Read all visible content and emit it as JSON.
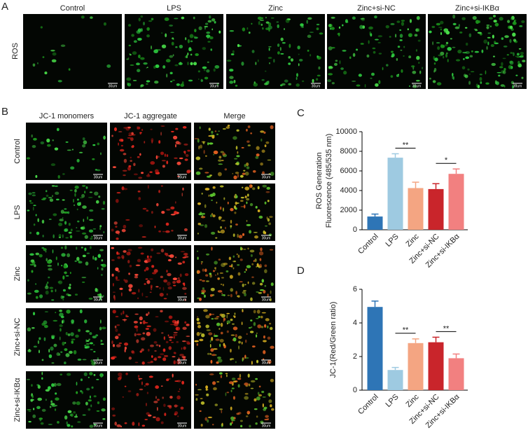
{
  "panels": {
    "A": {
      "letter": "A",
      "columns": [
        "Control",
        "LPS",
        "Zinc",
        "Zinc+si-NC",
        "Zinc+si-IKBα"
      ],
      "row_label": "ROS",
      "scale_bar": "30um"
    },
    "B": {
      "letter": "B",
      "columns": [
        "JC-1 monomers",
        "JC-1 aggregate",
        "Merge"
      ],
      "rows": [
        "Control",
        "LPS",
        "Zinc",
        "Zinc+si-NC",
        "Zinc+si-IKBα"
      ],
      "scale_bar": "30um"
    }
  },
  "chart_data": [
    {
      "type": "bar",
      "panel": "C",
      "ylabel": [
        "ROS Generation",
        "Fluorescence (485/535 nm)"
      ],
      "categories": [
        "Control",
        "LPS",
        "Zinc",
        "Zinc+si-NC",
        "Zinc+si-IKBα"
      ],
      "values": [
        1350,
        7350,
        4250,
        4150,
        5700
      ],
      "errors": [
        250,
        400,
        600,
        550,
        500
      ],
      "colors": [
        "#2e75b6",
        "#9ecae1",
        "#f4a582",
        "#c9252b",
        "#f28080"
      ],
      "ylim": [
        0,
        10000
      ],
      "yticks": [
        0,
        2000,
        4000,
        6000,
        8000,
        10000
      ],
      "annotations": [
        {
          "text": "**",
          "between": [
            "LPS",
            "Zinc"
          ]
        },
        {
          "text": "*",
          "between": [
            "Zinc+si-NC",
            "Zinc+si-IKBα"
          ]
        }
      ]
    },
    {
      "type": "bar",
      "panel": "D",
      "ylabel": [
        "JC-1(Red/Green ratio)"
      ],
      "categories": [
        "Control",
        "LPS",
        "Zinc",
        "Zinc+si-NC",
        "Zinc+si-IKBα"
      ],
      "values": [
        4.95,
        1.2,
        2.8,
        2.85,
        1.9
      ],
      "errors": [
        0.35,
        0.15,
        0.25,
        0.3,
        0.25
      ],
      "colors": [
        "#2e75b6",
        "#9ecae1",
        "#f4a582",
        "#c9252b",
        "#f28080"
      ],
      "ylim": [
        0,
        6
      ],
      "yticks": [
        0,
        2,
        4,
        6
      ],
      "annotations": [
        {
          "text": "**",
          "between": [
            "LPS",
            "Zinc"
          ]
        },
        {
          "text": "**",
          "between": [
            "Zinc+si-NC",
            "Zinc+si-IKBα"
          ]
        }
      ]
    }
  ]
}
